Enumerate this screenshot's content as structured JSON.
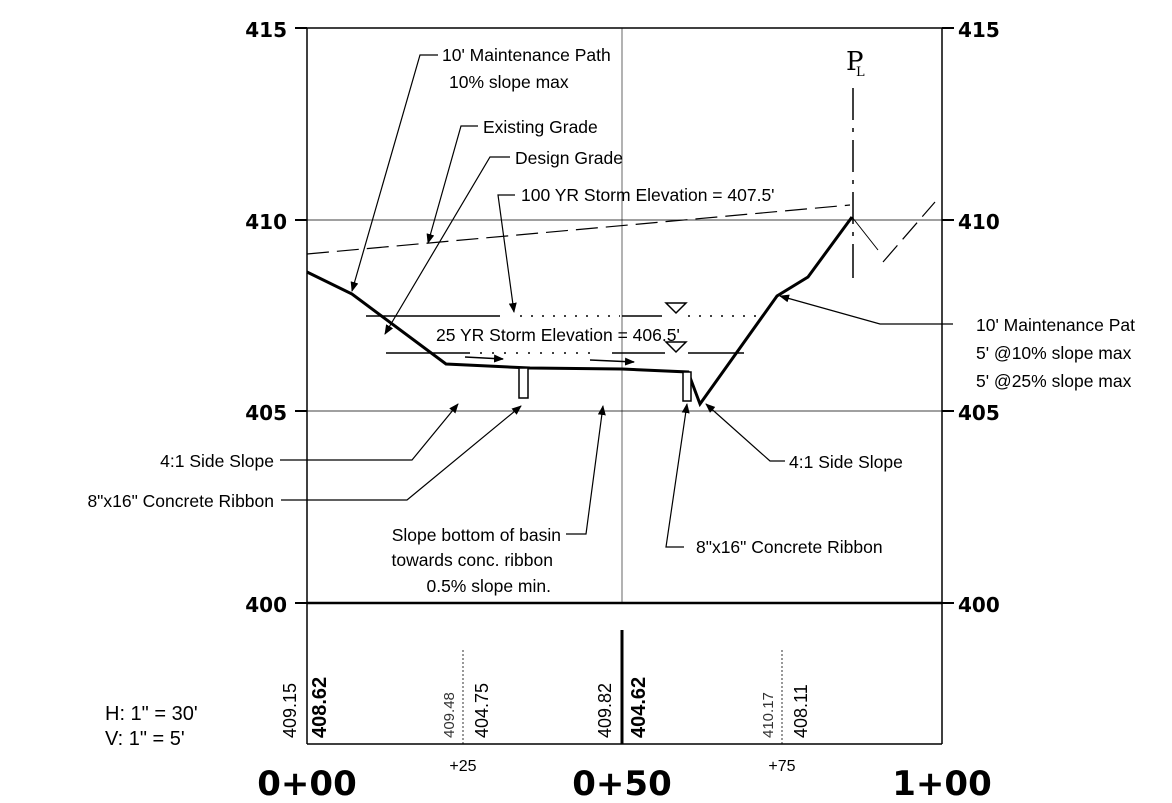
{
  "elevation_labels": [
    "415",
    "410",
    "405",
    "400"
  ],
  "station_labels": {
    "s0": "0+00",
    "s50": "0+50",
    "s100": "1+00",
    "s25": "+25",
    "s75": "+75"
  },
  "centerline_symbol": "P",
  "scale": {
    "horizontal": "H: 1\" = 30'",
    "vertical": "V: 1\" = 5'"
  },
  "annotations": {
    "maint_path_left_1": "10' Maintenance Path",
    "maint_path_left_2": "10% slope max",
    "existing_grade": "Existing Grade",
    "design_grade": "Design Grade",
    "storm_100": "100 YR Storm Elevation = 407.5'",
    "storm_25": "25 YR Storm Elevation = 406.5'",
    "maint_path_right_1": "10' Maintenance Pat",
    "maint_path_right_2": "5' @10% slope max",
    "maint_path_right_3": "5' @25% slope max",
    "side_slope_left": "4:1 Side Slope",
    "side_slope_right": "4:1 Side Slope",
    "ribbon_left": "8\"x16\" Concrete Ribbon",
    "ribbon_right": "8\"x16\" Concrete Ribbon",
    "basin_1": "Slope bottom of basin",
    "basin_2": "towards conc. ribbon",
    "basin_3": "0.5% slope min."
  },
  "station_values": [
    {
      "existing": "409.15",
      "design": "408.62"
    },
    {
      "existing": "409.48",
      "design": "404.75"
    },
    {
      "existing": "409.82",
      "design": "404.62"
    },
    {
      "existing": "410.17",
      "design": "408.11"
    }
  ]
}
